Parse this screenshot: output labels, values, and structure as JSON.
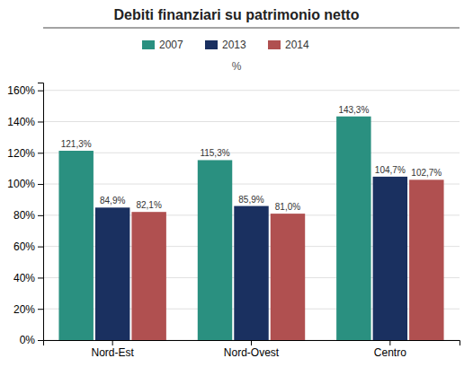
{
  "chart_data": {
    "type": "bar",
    "title": "Debiti finanziari su patrimonio netto",
    "subtitle": "%",
    "categories": [
      "Nord-Est",
      "Nord-Ovest",
      "Centro"
    ],
    "series": [
      {
        "name": "2007",
        "color": "#2a9080",
        "values": [
          121.3,
          115.3,
          143.3
        ],
        "value_labels": [
          "121,3%",
          "115,3%",
          "143,3%"
        ]
      },
      {
        "name": "2013",
        "color": "#1a3060",
        "values": [
          84.9,
          85.9,
          104.7
        ],
        "value_labels": [
          "84,9%",
          "85,9%",
          "104,7%"
        ]
      },
      {
        "name": "2014",
        "color": "#b05050",
        "values": [
          82.1,
          81.0,
          102.7
        ],
        "value_labels": [
          "82,1%",
          "81,0%",
          "102,7%"
        ]
      }
    ],
    "ylim": [
      0,
      165
    ],
    "yticks": [
      {
        "value": 0,
        "label": "0%"
      },
      {
        "value": 20,
        "label": "20%"
      },
      {
        "value": 40,
        "label": "40%"
      },
      {
        "value": 60,
        "label": "60%"
      },
      {
        "value": 80,
        "label": "80%"
      },
      {
        "value": 100,
        "label": "100%"
      },
      {
        "value": 120,
        "label": "120%"
      },
      {
        "value": 140,
        "label": "140%"
      },
      {
        "value": 160,
        "label": "160%"
      }
    ],
    "grid": true,
    "legend": "top",
    "data_labels": true
  }
}
